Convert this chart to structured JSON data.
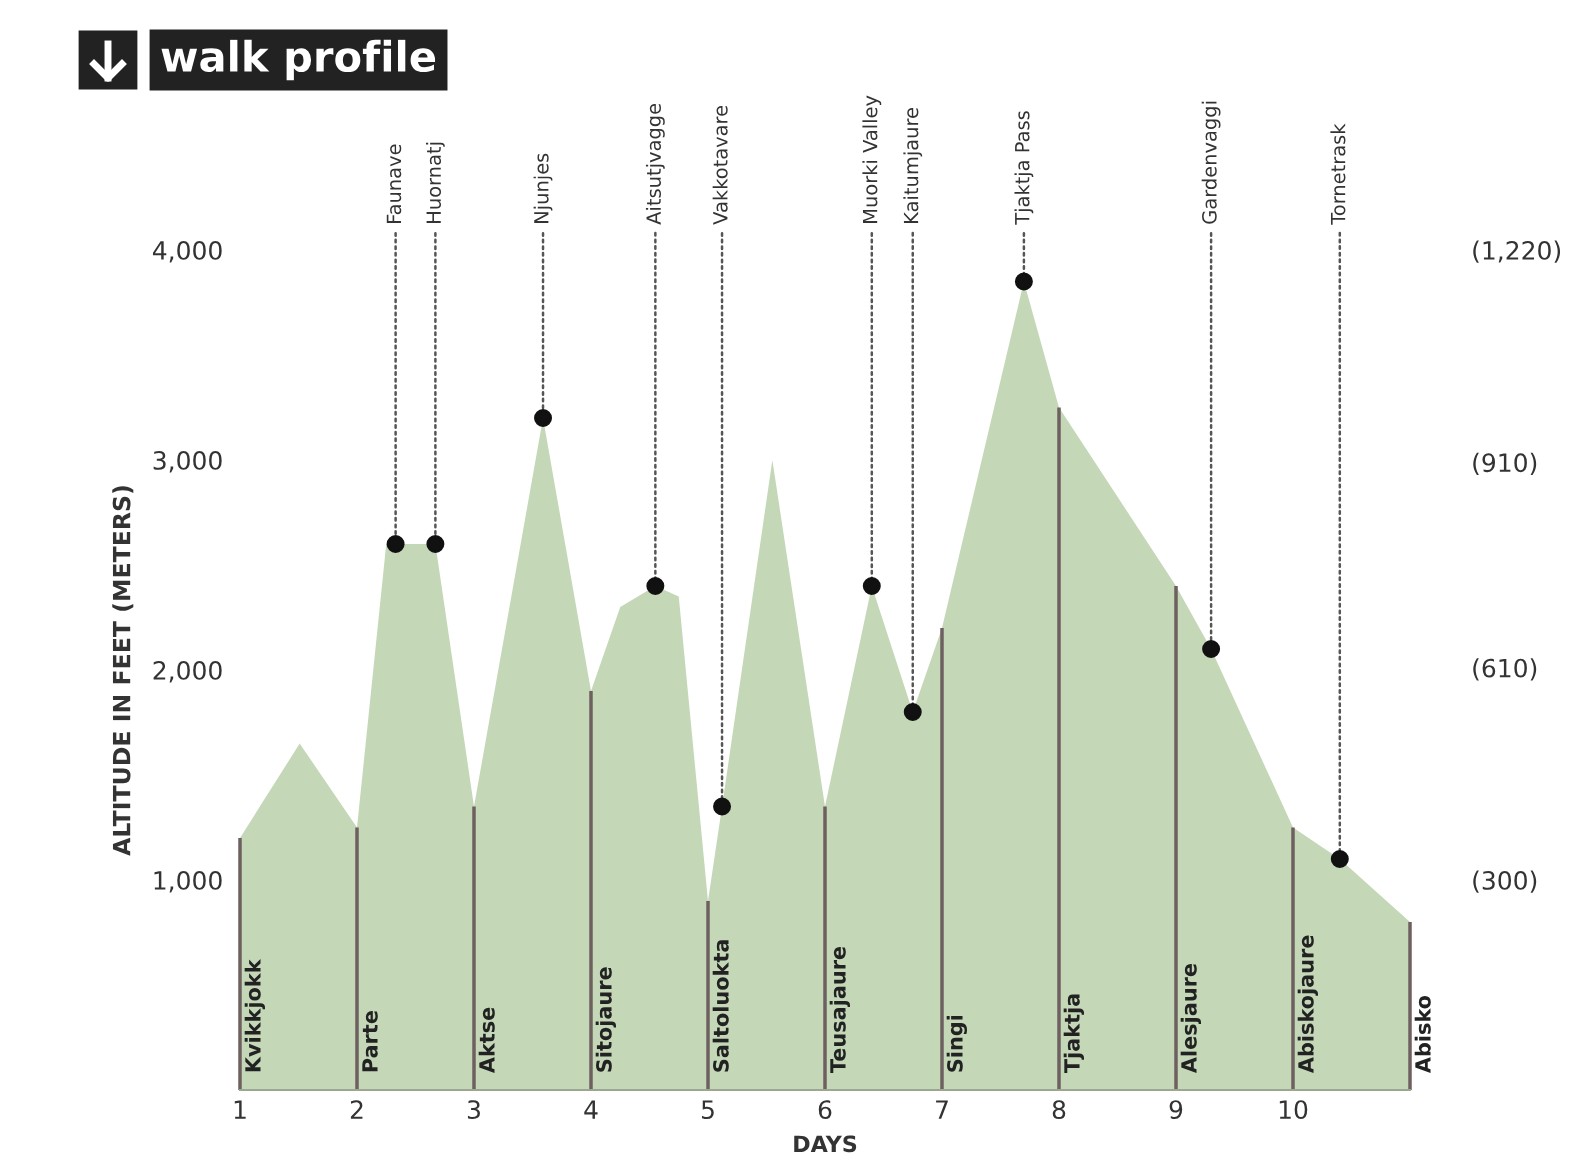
{
  "chart_data": {
    "type": "area",
    "title": "walk profile",
    "ylabel": "ALTITUDE IN FEET (METERS)",
    "xlabel": "DAYS",
    "xlim": [
      1,
      11
    ],
    "ylim": [
      0,
      4000
    ],
    "xticks": [
      1,
      2,
      3,
      4,
      5,
      6,
      7,
      8,
      9,
      10
    ],
    "yticks": [
      {
        "value": 1000,
        "label": "1,000"
      },
      {
        "value": 2000,
        "label": "2,000"
      },
      {
        "value": 3000,
        "label": "3,000"
      },
      {
        "value": 4000,
        "label": "4,000"
      }
    ],
    "y2lim": [
      300,
      1220
    ],
    "y2ticks": [
      {
        "value": 300,
        "label": "(300)"
      },
      {
        "value": 610,
        "label": "(610)"
      },
      {
        "value": 910,
        "label": "(910)"
      },
      {
        "value": 1220,
        "label": "(1,220)"
      }
    ],
    "grid": false,
    "legend": false,
    "series": [
      {
        "color": "#c4d8b8",
        "x": [
          1,
          1.51,
          2,
          2.25,
          2.33,
          2.67,
          3,
          3.59,
          4,
          4.25,
          4.55,
          4.75,
          5,
          5.12,
          5.55,
          6,
          6.4,
          6.75,
          7,
          7.7,
          8,
          9,
          9.3,
          10,
          10.4,
          11
        ],
        "values": [
          1200,
          1650,
          1250,
          2600,
          2600,
          2600,
          1350,
          3200,
          1900,
          2300,
          2400,
          2350,
          900,
          1350,
          3000,
          1350,
          2400,
          1800,
          2200,
          3850,
          3250,
          2400,
          2100,
          1250,
          1100,
          800
        ]
      },
      {
        "type": "bar",
        "color": "#6e6060",
        "x": [
          1,
          2,
          3,
          4,
          5,
          6,
          7,
          8,
          9,
          10,
          11
        ],
        "values": [
          1200,
          1250,
          1350,
          1900,
          900,
          1350,
          2200,
          3250,
          2400,
          1250,
          800
        ]
      },
      {
        "type": "scatter",
        "color": "#111111",
        "marker": "circle",
        "x": [
          2.33,
          2.67,
          3.59,
          4.55,
          5.12,
          6.4,
          6.75,
          7.7,
          9.3,
          10.4
        ],
        "values": [
          2600,
          2600,
          3200,
          2400,
          1350,
          2400,
          1800,
          3850,
          2100,
          1100
        ]
      }
    ],
    "annotations": [
      "Kvikkjokk",
      "Parte",
      "Aktse",
      "Sitojaure",
      "Saltoluokta",
      "Teusajaure",
      "Singi",
      "Tjaktja",
      "Alesjaure",
      "Abiskojaure",
      "Abisko",
      {
        "text": "Faunave",
        "x": 2.33,
        "y": 2600
      },
      {
        "text": "Huornatj",
        "x": 2.67,
        "y": 2600
      },
      {
        "text": "Njunjes",
        "x": 3.59,
        "y": 3200
      },
      {
        "text": "Aitsutjvagge",
        "x": 4.55,
        "y": 2400
      },
      {
        "text": "Vakkotavare",
        "x": 5.12,
        "y": 1350
      },
      {
        "text": "Muorki Valley",
        "x": 6.4,
        "y": 2400
      },
      {
        "text": "Kaitumjaure",
        "x": 6.75,
        "y": 1800
      },
      {
        "text": "Tjaktja Pass",
        "x": 7.7,
        "y": 3850
      },
      {
        "text": "Gardenvaggi",
        "x": 9.3,
        "y": 2100
      },
      {
        "text": "Tornetrask",
        "x": 10.4,
        "y": 1100
      }
    ]
  }
}
